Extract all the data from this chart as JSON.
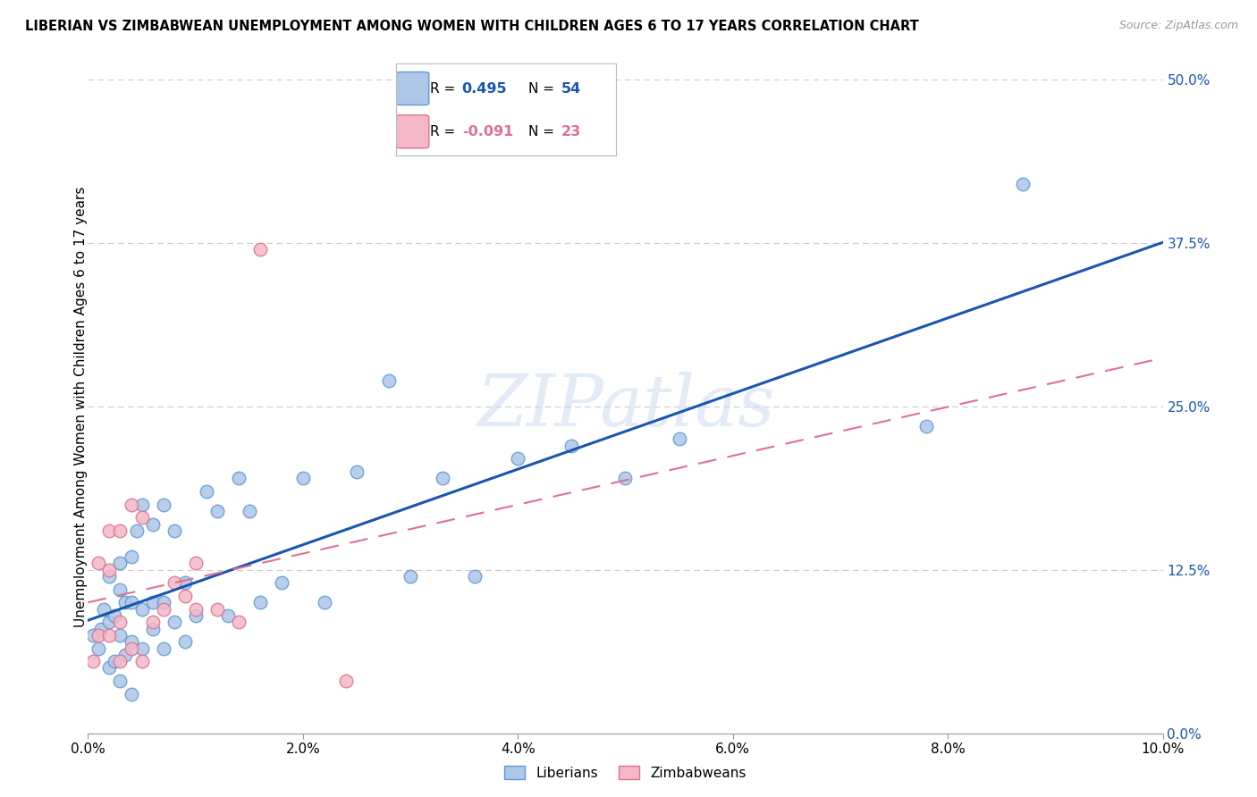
{
  "title": "LIBERIAN VS ZIMBABWEAN UNEMPLOYMENT AMONG WOMEN WITH CHILDREN AGES 6 TO 17 YEARS CORRELATION CHART",
  "source": "Source: ZipAtlas.com",
  "ylabel": "Unemployment Among Women with Children Ages 6 to 17 years",
  "xlim": [
    0.0,
    0.1
  ],
  "ylim": [
    0.0,
    0.5
  ],
  "xticks": [
    0.0,
    0.02,
    0.04,
    0.06,
    0.08,
    0.1
  ],
  "yticks_right": [
    0.0,
    0.125,
    0.25,
    0.375,
    0.5
  ],
  "liberian_color": "#aec6e8",
  "liberian_edge_color": "#5b9bd5",
  "zimbabwean_color": "#f4b8c8",
  "zimbabwean_edge_color": "#e07090",
  "liberian_line_color": "#1a56b0",
  "zimbabwean_line_color": "#e07090",
  "R_liberian": 0.495,
  "N_liberian": 54,
  "R_zimbabwean": -0.091,
  "N_zimbabwean": 23,
  "liberian_x": [
    0.0005,
    0.001,
    0.0012,
    0.0015,
    0.002,
    0.002,
    0.002,
    0.0025,
    0.0025,
    0.003,
    0.003,
    0.003,
    0.003,
    0.0035,
    0.0035,
    0.004,
    0.004,
    0.004,
    0.004,
    0.0045,
    0.005,
    0.005,
    0.005,
    0.006,
    0.006,
    0.006,
    0.007,
    0.007,
    0.007,
    0.008,
    0.008,
    0.009,
    0.009,
    0.01,
    0.011,
    0.012,
    0.013,
    0.014,
    0.015,
    0.016,
    0.018,
    0.02,
    0.022,
    0.025,
    0.028,
    0.03,
    0.033,
    0.036,
    0.04,
    0.045,
    0.05,
    0.055,
    0.078,
    0.087
  ],
  "liberian_y": [
    0.075,
    0.065,
    0.08,
    0.095,
    0.05,
    0.085,
    0.12,
    0.055,
    0.09,
    0.04,
    0.075,
    0.11,
    0.13,
    0.06,
    0.1,
    0.03,
    0.07,
    0.1,
    0.135,
    0.155,
    0.065,
    0.095,
    0.175,
    0.08,
    0.1,
    0.16,
    0.065,
    0.1,
    0.175,
    0.085,
    0.155,
    0.07,
    0.115,
    0.09,
    0.185,
    0.17,
    0.09,
    0.195,
    0.17,
    0.1,
    0.115,
    0.195,
    0.1,
    0.2,
    0.27,
    0.12,
    0.195,
    0.12,
    0.21,
    0.22,
    0.195,
    0.225,
    0.235,
    0.42
  ],
  "zimbabwean_x": [
    0.0005,
    0.001,
    0.001,
    0.002,
    0.002,
    0.002,
    0.003,
    0.003,
    0.003,
    0.004,
    0.004,
    0.005,
    0.005,
    0.006,
    0.007,
    0.008,
    0.009,
    0.01,
    0.01,
    0.012,
    0.014,
    0.016,
    0.024
  ],
  "zimbabwean_y": [
    0.055,
    0.075,
    0.13,
    0.075,
    0.125,
    0.155,
    0.055,
    0.085,
    0.155,
    0.065,
    0.175,
    0.055,
    0.165,
    0.085,
    0.095,
    0.115,
    0.105,
    0.095,
    0.13,
    0.095,
    0.085,
    0.37,
    0.04
  ],
  "watermark_text": "ZIPatlas",
  "background_color": "#ffffff",
  "grid_color": "#cccccc",
  "title_fontsize": 10.5,
  "source_fontsize": 9,
  "tick_fontsize": 11,
  "ylabel_fontsize": 11
}
